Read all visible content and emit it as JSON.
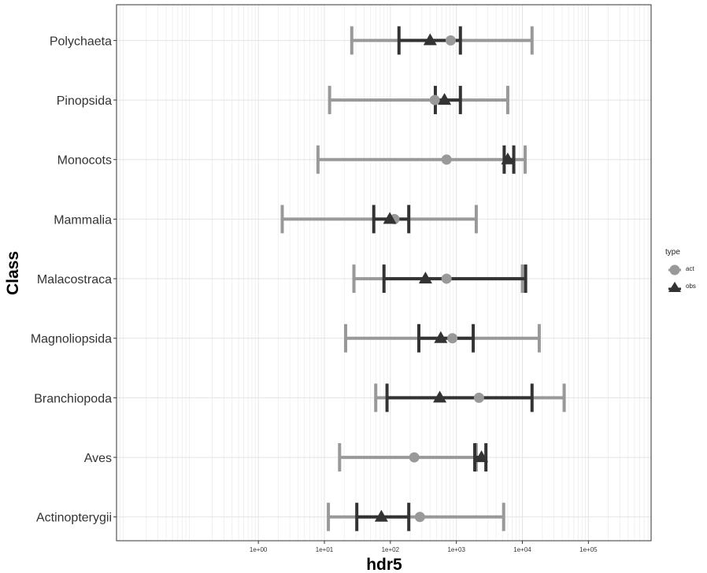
{
  "chart_data": {
    "type": "interval",
    "title": "",
    "xlabel": "hdr5",
    "ylabel": "Class",
    "x_scale": "log10",
    "xlim": [
      0.0071,
      891000
    ],
    "x_ticks": [
      1,
      10,
      100,
      1000,
      10000,
      100000
    ],
    "x_tick_labels": [
      "1e+00",
      "1e+01",
      "1e+02",
      "1e+03",
      "1e+04",
      "1e+05"
    ],
    "grid": true,
    "legend_position": "right",
    "legend_title": "type",
    "categories": [
      "Polychaeta",
      "Pinopsida",
      "Monocots",
      "Mammalia",
      "Malacostraca",
      "Magnoliopsida",
      "Branchiopoda",
      "Aves",
      "Actinopterygii"
    ],
    "series": [
      {
        "name": "act",
        "color": "#999999",
        "marker": "circle",
        "points": [
          820,
          470,
          710,
          115,
          710,
          870,
          2200,
          230,
          280
        ],
        "lower": [
          26,
          12,
          8,
          2.3,
          28,
          21,
          60,
          17,
          11.5
        ],
        "upper": [
          14000,
          6000,
          11000,
          2000,
          10000,
          18000,
          43000,
          2000,
          5200
        ]
      },
      {
        "name": "obs",
        "color": "#333333",
        "marker": "triangle",
        "points": [
          400,
          660,
          6000,
          98,
          340,
          580,
          560,
          2400,
          73
        ],
        "lower": [
          135,
          480,
          5300,
          56,
          80,
          270,
          89,
          1900,
          31
        ],
        "upper": [
          1150,
          1150,
          7400,
          190,
          11200,
          1800,
          14000,
          2800,
          190
        ]
      }
    ]
  }
}
